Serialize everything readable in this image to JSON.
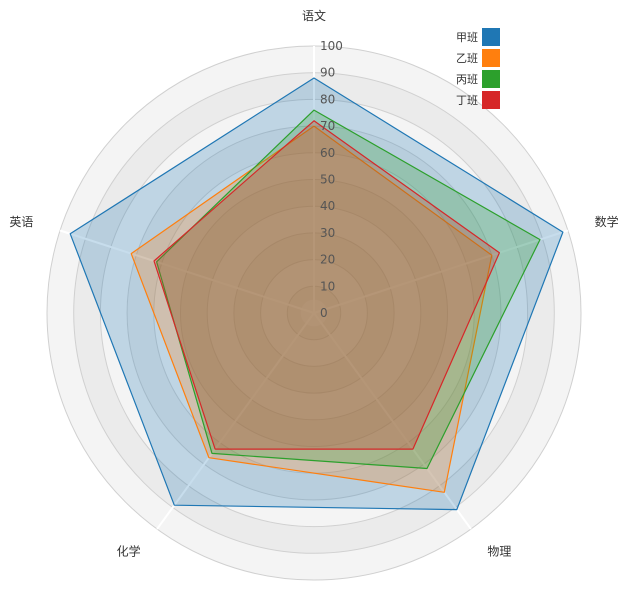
{
  "chart_data": {
    "type": "radar",
    "axes": [
      "语文",
      "数学",
      "物理",
      "化学",
      "英语"
    ],
    "rlim": [
      0,
      100
    ],
    "ticks": [
      0,
      10,
      20,
      30,
      40,
      50,
      60,
      70,
      80,
      90,
      100
    ],
    "tick_labels": [
      "0",
      "10",
      "20",
      "30",
      "40",
      "50",
      "60",
      "70",
      "80",
      "90",
      "100"
    ],
    "legend_position": "top-right",
    "series": [
      {
        "name": "甲班",
        "color": "#1f77b4",
        "values": [
          88,
          98,
          91,
          89,
          96
        ]
      },
      {
        "name": "乙班",
        "color": "#ff7f0e",
        "values": [
          70,
          70,
          83,
          67,
          72
        ]
      },
      {
        "name": "丙班",
        "color": "#2ca02c",
        "values": [
          76,
          89,
          72,
          65,
          62
        ]
      },
      {
        "name": "丁班",
        "color": "#d62728",
        "values": [
          72,
          73,
          63,
          63,
          63
        ]
      }
    ]
  }
}
